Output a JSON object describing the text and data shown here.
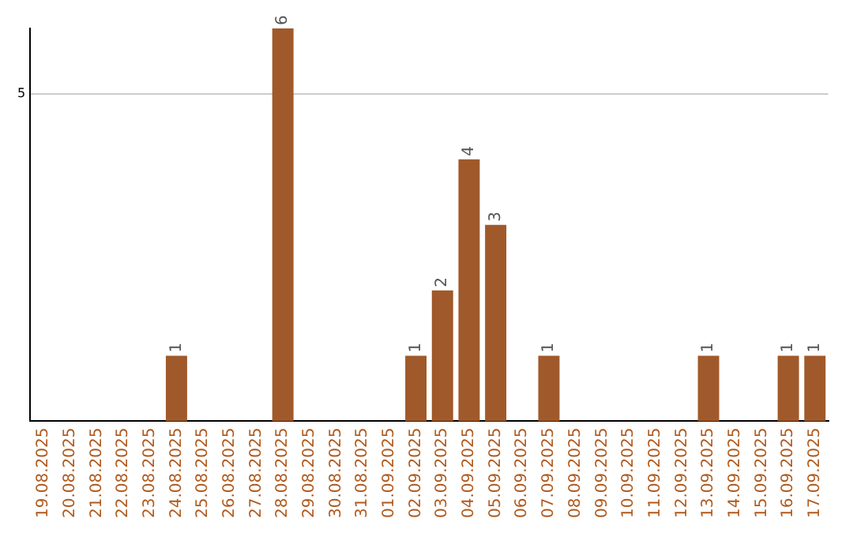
{
  "chart_data": {
    "type": "bar",
    "categories": [
      "19.08.2025",
      "20.08.2025",
      "21.08.2025",
      "22.08.2025",
      "23.08.2025",
      "24.08.2025",
      "25.08.2025",
      "26.08.2025",
      "27.08.2025",
      "28.08.2025",
      "29.08.2025",
      "30.08.2025",
      "31.08.2025",
      "01.09.2025",
      "02.09.2025",
      "03.09.2025",
      "04.09.2025",
      "05.09.2025",
      "06.09.2025",
      "07.09.2025",
      "08.09.2025",
      "09.09.2025",
      "10.09.2025",
      "11.09.2025",
      "12.09.2025",
      "13.09.2025",
      "14.09.2025",
      "15.09.2025",
      "16.09.2025",
      "17.09.2025"
    ],
    "values": [
      0,
      0,
      0,
      0,
      0,
      1,
      0,
      0,
      0,
      6,
      0,
      0,
      0,
      0,
      1,
      2,
      4,
      3,
      0,
      1,
      0,
      0,
      0,
      0,
      0,
      1,
      0,
      0,
      1,
      1
    ],
    "value_labels": [
      null,
      null,
      null,
      null,
      null,
      "1",
      null,
      null,
      null,
      "6",
      null,
      null,
      null,
      null,
      "1",
      "2",
      "4",
      "3",
      null,
      "1",
      null,
      null,
      null,
      null,
      null,
      "1",
      null,
      null,
      "1",
      "1"
    ],
    "color": "#a0592a",
    "ylim": [
      0,
      6
    ],
    "yticks": [
      5
    ],
    "grid": "y",
    "legend": false
  }
}
